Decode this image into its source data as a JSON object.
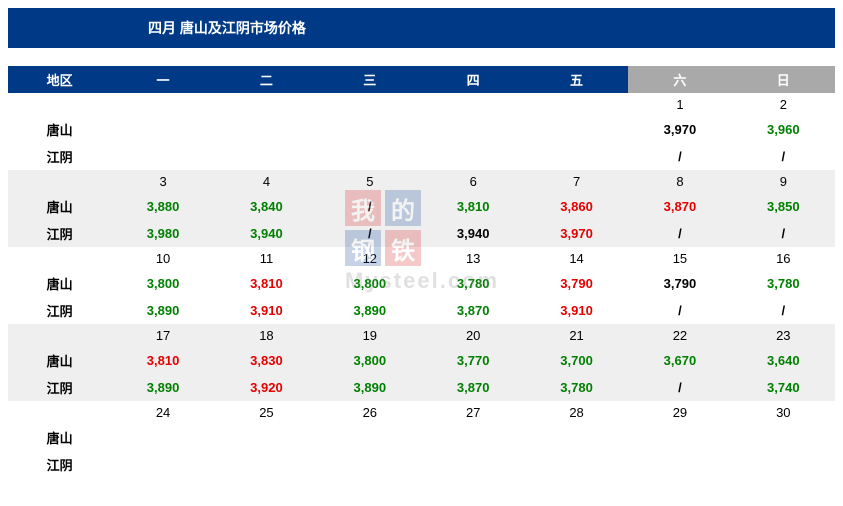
{
  "title": "四月  唐山及江阴市场价格",
  "colors": {
    "header_weekday_bg": "#003a87",
    "header_weekend_bg": "#a9a9a9",
    "header_fg": "#ffffff",
    "stripe_bg": "#efefef",
    "price_up": "#e60000",
    "price_down": "#008000",
    "price_flat": "#000000"
  },
  "region_label": "地区",
  "weekday_headers": [
    "一",
    "二",
    "三",
    "四",
    "五",
    "六",
    "日"
  ],
  "regions": [
    "唐山",
    "江阴"
  ],
  "weeks": [
    {
      "stripe": false,
      "dates": [
        "",
        "",
        "",
        "",
        "",
        "1",
        "2"
      ],
      "rows": [
        [
          null,
          null,
          null,
          null,
          null,
          {
            "v": "3,970",
            "c": "black"
          },
          {
            "v": "3,960",
            "c": "green"
          }
        ],
        [
          null,
          null,
          null,
          null,
          null,
          {
            "v": "/",
            "c": "slash"
          },
          {
            "v": "/",
            "c": "slash"
          }
        ]
      ]
    },
    {
      "stripe": true,
      "dates": [
        "3",
        "4",
        "5",
        "6",
        "7",
        "8",
        "9"
      ],
      "rows": [
        [
          {
            "v": "3,880",
            "c": "green"
          },
          {
            "v": "3,840",
            "c": "green"
          },
          {
            "v": "/",
            "c": "slash"
          },
          {
            "v": "3,810",
            "c": "green"
          },
          {
            "v": "3,860",
            "c": "red"
          },
          {
            "v": "3,870",
            "c": "red"
          },
          {
            "v": "3,850",
            "c": "green"
          }
        ],
        [
          {
            "v": "3,980",
            "c": "green"
          },
          {
            "v": "3,940",
            "c": "green"
          },
          {
            "v": "/",
            "c": "slash"
          },
          {
            "v": "3,940",
            "c": "black"
          },
          {
            "v": "3,970",
            "c": "red"
          },
          {
            "v": "/",
            "c": "slash"
          },
          {
            "v": "/",
            "c": "slash"
          }
        ]
      ]
    },
    {
      "stripe": false,
      "dates": [
        "10",
        "11",
        "12",
        "13",
        "14",
        "15",
        "16"
      ],
      "rows": [
        [
          {
            "v": "3,800",
            "c": "green"
          },
          {
            "v": "3,810",
            "c": "red"
          },
          {
            "v": "3,800",
            "c": "green"
          },
          {
            "v": "3,780",
            "c": "green"
          },
          {
            "v": "3,790",
            "c": "red"
          },
          {
            "v": "3,790",
            "c": "black"
          },
          {
            "v": "3,780",
            "c": "green"
          }
        ],
        [
          {
            "v": "3,890",
            "c": "green"
          },
          {
            "v": "3,910",
            "c": "red"
          },
          {
            "v": "3,890",
            "c": "green"
          },
          {
            "v": "3,870",
            "c": "green"
          },
          {
            "v": "3,910",
            "c": "red"
          },
          {
            "v": "/",
            "c": "slash"
          },
          {
            "v": "/",
            "c": "slash"
          }
        ]
      ]
    },
    {
      "stripe": true,
      "dates": [
        "17",
        "18",
        "19",
        "20",
        "21",
        "22",
        "23"
      ],
      "rows": [
        [
          {
            "v": "3,810",
            "c": "red"
          },
          {
            "v": "3,830",
            "c": "red"
          },
          {
            "v": "3,800",
            "c": "green"
          },
          {
            "v": "3,770",
            "c": "green"
          },
          {
            "v": "3,700",
            "c": "green"
          },
          {
            "v": "3,670",
            "c": "green"
          },
          {
            "v": "3,640",
            "c": "green"
          }
        ],
        [
          {
            "v": "3,890",
            "c": "green"
          },
          {
            "v": "3,920",
            "c": "red"
          },
          {
            "v": "3,890",
            "c": "green"
          },
          {
            "v": "3,870",
            "c": "green"
          },
          {
            "v": "3,780",
            "c": "green"
          },
          {
            "v": "/",
            "c": "slash"
          },
          {
            "v": "3,740",
            "c": "green"
          }
        ]
      ]
    },
    {
      "stripe": false,
      "dates": [
        "24",
        "25",
        "26",
        "27",
        "28",
        "29",
        "30"
      ],
      "rows": [
        [
          null,
          null,
          null,
          null,
          null,
          null,
          null
        ],
        [
          null,
          null,
          null,
          null,
          null,
          null,
          null
        ]
      ]
    }
  ],
  "watermark": {
    "blocks": [
      "我",
      "的",
      "钢",
      "铁"
    ],
    "sub": "Mysteel.com"
  }
}
